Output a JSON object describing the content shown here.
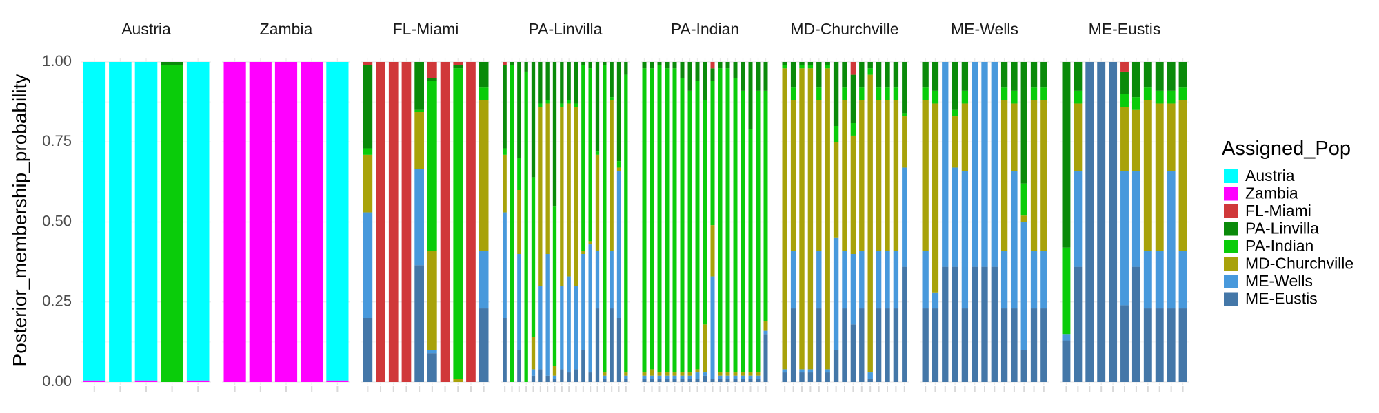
{
  "chart_data": {
    "type": "bar",
    "stacked": true,
    "faceted": true,
    "ylabel": "Posterior_membership_probability",
    "ylim": [
      0,
      1
    ],
    "yticks": [
      "0.00",
      "0.25",
      "0.50",
      "0.75",
      "1.00"
    ],
    "legend": {
      "title": "Assigned_Pop",
      "placement": "right",
      "entries": [
        "Austria",
        "Zambia",
        "FL-Miami",
        "PA-Linvilla",
        "PA-Indian",
        "MD-Churchville",
        "ME-Wells",
        "ME-Eustis"
      ]
    },
    "stack_order_bottom_to_top": [
      "ME-Eustis",
      "ME-Wells",
      "MD-Churchville",
      "PA-Indian",
      "PA-Linvilla",
      "FL-Miami",
      "Zambia",
      "Austria"
    ],
    "colors": {
      "Austria": "#00FFFF",
      "Zambia": "#FF00FF",
      "FL-Miami": "#D0383A",
      "PA-Linvilla": "#0A8A0A",
      "PA-Indian": "#0ACC0A",
      "MD-Churchville": "#A8A20A",
      "ME-Wells": "#4899DC",
      "ME-Eustis": "#4477A8"
    },
    "facets": [
      {
        "title": "Austria",
        "bars": [
          {
            "Zambia": 0.005,
            "Austria": 0.995
          },
          {
            "Austria": 1.0
          },
          {
            "Zambia": 0.005,
            "Austria": 0.995
          },
          {
            "PA-Indian": 0.99,
            "PA-Linvilla": 0.01
          },
          {
            "Zambia": 0.005,
            "Austria": 0.995
          }
        ]
      },
      {
        "title": "Zambia",
        "bars": [
          {
            "Zambia": 1.0
          },
          {
            "Zambia": 1.0
          },
          {
            "Zambia": 1.0
          },
          {
            "Zambia": 1.0
          },
          {
            "Zambia": 0.005,
            "Austria": 0.995
          }
        ]
      },
      {
        "title": "FL-Miami",
        "bars": [
          {
            "ME-Eustis": 0.2,
            "ME-Wells": 0.33,
            "MD-Churchville": 0.18,
            "PA-Indian": 0.02,
            "PA-Linvilla": 0.26,
            "FL-Miami": 0.01
          },
          {
            "FL-Miami": 1.0
          },
          {
            "FL-Miami": 1.0
          },
          {
            "FL-Miami": 1.0
          },
          {
            "ME-Eustis": 0.365,
            "ME-Wells": 0.3,
            "MD-Churchville": 0.18,
            "PA-Indian": 0.005,
            "PA-Linvilla": 0.15
          },
          {
            "ME-Eustis": 0.09,
            "ME-Wells": 0.01,
            "MD-Churchville": 0.31,
            "PA-Indian": 0.53,
            "PA-Linvilla": 0.01,
            "FL-Miami": 0.05
          },
          {
            "FL-Miami": 1.0
          },
          {
            "MD-Churchville": 0.01,
            "PA-Indian": 0.97,
            "PA-Linvilla": 0.01,
            "FL-Miami": 0.01
          },
          {
            "FL-Miami": 1.0
          },
          {
            "ME-Eustis": 0.23,
            "ME-Wells": 0.18,
            "MD-Churchville": 0.47,
            "PA-Indian": 0.04,
            "PA-Linvilla": 0.08
          }
        ]
      },
      {
        "title": "PA-Linvilla",
        "bars": [
          {
            "ME-Eustis": 0.2,
            "ME-Wells": 0.33,
            "MD-Churchville": 0.18,
            "PA-Indian": 0.02,
            "PA-Linvilla": 0.26,
            "FL-Miami": 0.01
          },
          {
            "PA-Indian": 0.99,
            "PA-Linvilla": 0.01
          },
          {
            "ME-Eustis": 0.1,
            "ME-Wells": 0.3,
            "MD-Churchville": 0.2,
            "PA-Indian": 0.1,
            "PA-Linvilla": 0.3
          },
          {
            "PA-Indian": 0.97,
            "PA-Linvilla": 0.03
          },
          {
            "ME-Eustis": 0.02,
            "ME-Wells": 0.02,
            "MD-Churchville": 0.1,
            "PA-Indian": 0.5,
            "PA-Linvilla": 0.36
          },
          {
            "ME-Eustis": 0.04,
            "ME-Wells": 0.26,
            "MD-Churchville": 0.56,
            "PA-Indian": 0.01,
            "PA-Linvilla": 0.13
          },
          {
            "ME-Eustis": 0.02,
            "ME-Wells": 0.38,
            "MD-Churchville": 0.47,
            "PA-Indian": 0.01,
            "PA-Linvilla": 0.12
          },
          {
            "ME-Eustis": 0.01,
            "ME-Wells": 0.01,
            "MD-Churchville": 0.03,
            "PA-Indian": 0.5,
            "PA-Linvilla": 0.45
          },
          {
            "ME-Eustis": 0.04,
            "ME-Wells": 0.26,
            "MD-Churchville": 0.56,
            "PA-Indian": 0.01,
            "PA-Linvilla": 0.13
          },
          {
            "ME-Eustis": 0.03,
            "ME-Wells": 0.3,
            "MD-Churchville": 0.54,
            "PA-Indian": 0.01,
            "PA-Linvilla": 0.12
          },
          {
            "ME-Eustis": 0.04,
            "ME-Wells": 0.26,
            "MD-Churchville": 0.56,
            "PA-Indian": 0.01,
            "PA-Linvilla": 0.13
          },
          {
            "ME-Eustis": 0.1,
            "ME-Wells": 0.3,
            "MD-Churchville": 0.01,
            "PA-Indian": 0.58,
            "PA-Linvilla": 0.01
          },
          {
            "ME-Eustis": 0.03,
            "ME-Wells": 0.4,
            "MD-Churchville": 0.01,
            "PA-Indian": 0.54,
            "PA-Linvilla": 0.02
          },
          {
            "ME-Eustis": 0.23,
            "ME-Wells": 0.18,
            "MD-Churchville": 0.3,
            "PA-Indian": 0.01,
            "PA-Linvilla": 0.28
          },
          {
            "ME-Eustis": 0.01,
            "ME-Wells": 0.01,
            "MD-Churchville": 0.01,
            "PA-Indian": 0.96,
            "PA-Linvilla": 0.01
          },
          {
            "ME-Eustis": 0.23,
            "ME-Wells": 0.18,
            "MD-Churchville": 0.47,
            "PA-Indian": 0.01,
            "PA-Linvilla": 0.11
          },
          {
            "ME-Eustis": 0.2,
            "ME-Wells": 0.46,
            "MD-Churchville": 0.01,
            "PA-Indian": 0.02,
            "PA-Linvilla": 0.31
          },
          {
            "ME-Eustis": 0.01,
            "ME-Wells": 0.01,
            "MD-Churchville": 0.01,
            "PA-Indian": 0.93,
            "PA-Linvilla": 0.04
          }
        ]
      },
      {
        "title": "PA-Indian",
        "bars": [
          {
            "ME-Eustis": 0.01,
            "ME-Wells": 0.01,
            "MD-Churchville": 0.01,
            "PA-Indian": 0.95,
            "PA-Linvilla": 0.02
          },
          {
            "ME-Eustis": 0.01,
            "ME-Wells": 0.01,
            "MD-Churchville": 0.02,
            "PA-Indian": 0.94,
            "PA-Linvilla": 0.02
          },
          {
            "ME-Eustis": 0.01,
            "ME-Wells": 0.01,
            "MD-Churchville": 0.01,
            "PA-Indian": 0.96,
            "PA-Linvilla": 0.01
          },
          {
            "ME-Eustis": 0.01,
            "ME-Wells": 0.01,
            "MD-Churchville": 0.01,
            "PA-Indian": 0.95,
            "PA-Linvilla": 0.02
          },
          {
            "ME-Eustis": 0.01,
            "ME-Wells": 0.01,
            "MD-Churchville": 0.01,
            "PA-Indian": 0.95,
            "PA-Linvilla": 0.02
          },
          {
            "ME-Eustis": 0.01,
            "ME-Wells": 0.01,
            "MD-Churchville": 0.01,
            "PA-Indian": 0.92,
            "PA-Linvilla": 0.05
          },
          {
            "ME-Eustis": 0.01,
            "ME-Wells": 0.01,
            "MD-Churchville": 0.01,
            "PA-Indian": 0.88,
            "PA-Linvilla": 0.09
          },
          {
            "ME-Eustis": 0.01,
            "ME-Wells": 0.02,
            "MD-Churchville": 0.01,
            "PA-Indian": 0.9,
            "PA-Linvilla": 0.06
          },
          {
            "ME-Eustis": 0.02,
            "ME-Wells": 0.01,
            "MD-Churchville": 0.15,
            "PA-Indian": 0.7,
            "PA-Linvilla": 0.12
          },
          {
            "ME-Eustis": 0.01,
            "ME-Wells": 0.32,
            "MD-Churchville": 0.16,
            "PA-Indian": 0.45,
            "PA-Linvilla": 0.04,
            "FL-Miami": 0.02
          },
          {
            "ME-Eustis": 0.01,
            "ME-Wells": 0.01,
            "MD-Churchville": 0.01,
            "PA-Indian": 0.95,
            "PA-Linvilla": 0.02
          },
          {
            "ME-Eustis": 0.01,
            "ME-Wells": 0.01,
            "MD-Churchville": 0.01,
            "PA-Indian": 0.95,
            "PA-Linvilla": 0.02
          },
          {
            "ME-Eustis": 0.01,
            "ME-Wells": 0.01,
            "MD-Churchville": 0.01,
            "PA-Indian": 0.92,
            "PA-Linvilla": 0.05
          },
          {
            "ME-Eustis": 0.01,
            "ME-Wells": 0.01,
            "MD-Churchville": 0.01,
            "PA-Indian": 0.88,
            "PA-Linvilla": 0.09
          },
          {
            "ME-Eustis": 0.01,
            "ME-Wells": 0.01,
            "MD-Churchville": 0.01,
            "PA-Indian": 0.76,
            "PA-Linvilla": 0.21
          },
          {
            "ME-Eustis": 0.01,
            "ME-Wells": 0.01,
            "MD-Churchville": 0.01,
            "PA-Indian": 0.88,
            "PA-Linvilla": 0.09
          },
          {
            "ME-Eustis": 0.15,
            "ME-Wells": 0.01,
            "MD-Churchville": 0.03,
            "PA-Indian": 0.72,
            "PA-Linvilla": 0.09
          }
        ]
      },
      {
        "title": "MD-Churchville",
        "bars": [
          {
            "ME-Eustis": 0.03,
            "ME-Wells": 0.01,
            "MD-Churchville": 0.94,
            "PA-Indian": 0.01,
            "PA-Linvilla": 0.01
          },
          {
            "ME-Eustis": 0.23,
            "ME-Wells": 0.18,
            "MD-Churchville": 0.47,
            "PA-Indian": 0.04,
            "PA-Linvilla": 0.08
          },
          {
            "ME-Eustis": 0.03,
            "ME-Wells": 0.01,
            "MD-Churchville": 0.94,
            "PA-Indian": 0.01,
            "PA-Linvilla": 0.01
          },
          {
            "ME-Eustis": 0.03,
            "ME-Wells": 0.01,
            "MD-Churchville": 0.94,
            "PA-Indian": 0.01,
            "PA-Linvilla": 0.01
          },
          {
            "ME-Eustis": 0.23,
            "ME-Wells": 0.18,
            "MD-Churchville": 0.47,
            "PA-Indian": 0.04,
            "PA-Linvilla": 0.08
          },
          {
            "ME-Eustis": 0.03,
            "ME-Wells": 0.01,
            "MD-Churchville": 0.94,
            "PA-Indian": 0.01,
            "PA-Linvilla": 0.01
          },
          {
            "ME-Eustis": 0.1,
            "ME-Wells": 0.35,
            "MD-Churchville": 0.3,
            "PA-Indian": 0.05,
            "PA-Linvilla": 0.2
          },
          {
            "ME-Eustis": 0.23,
            "ME-Wells": 0.18,
            "MD-Churchville": 0.47,
            "PA-Indian": 0.04,
            "PA-Linvilla": 0.08
          },
          {
            "ME-Eustis": 0.18,
            "ME-Wells": 0.22,
            "MD-Churchville": 0.37,
            "PA-Indian": 0.04,
            "PA-Linvilla": 0.15,
            "FL-Miami": 0.04
          },
          {
            "ME-Eustis": 0.23,
            "ME-Wells": 0.18,
            "MD-Churchville": 0.47,
            "PA-Indian": 0.04,
            "PA-Linvilla": 0.08
          },
          {
            "ME-Eustis": 0.01,
            "ME-Wells": 0.02,
            "MD-Churchville": 0.93,
            "PA-Indian": 0.02,
            "PA-Linvilla": 0.02
          },
          {
            "ME-Eustis": 0.23,
            "ME-Wells": 0.18,
            "MD-Churchville": 0.47,
            "PA-Indian": 0.04,
            "PA-Linvilla": 0.08
          },
          {
            "ME-Eustis": 0.23,
            "ME-Wells": 0.18,
            "MD-Churchville": 0.47,
            "PA-Indian": 0.04,
            "PA-Linvilla": 0.08
          },
          {
            "ME-Eustis": 0.23,
            "ME-Wells": 0.18,
            "MD-Churchville": 0.47,
            "PA-Indian": 0.04,
            "PA-Linvilla": 0.08
          },
          {
            "ME-Eustis": 0.36,
            "ME-Wells": 0.31,
            "MD-Churchville": 0.16,
            "PA-Indian": 0.01,
            "PA-Linvilla": 0.16
          }
        ]
      },
      {
        "title": "ME-Wells",
        "bars": [
          {
            "ME-Eustis": 0.23,
            "ME-Wells": 0.18,
            "MD-Churchville": 0.47,
            "PA-Indian": 0.04,
            "PA-Linvilla": 0.08
          },
          {
            "ME-Eustis": 0.23,
            "ME-Wells": 0.05,
            "MD-Churchville": 0.59,
            "PA-Indian": 0.04,
            "PA-Linvilla": 0.09
          },
          {
            "ME-Eustis": 0.36,
            "ME-Wells": 0.64
          },
          {
            "ME-Eustis": 0.36,
            "ME-Wells": 0.31,
            "MD-Churchville": 0.16,
            "PA-Indian": 0.02,
            "PA-Linvilla": 0.15
          },
          {
            "ME-Eustis": 0.23,
            "ME-Wells": 0.43,
            "MD-Churchville": 0.21,
            "PA-Indian": 0.04,
            "PA-Linvilla": 0.09
          },
          {
            "ME-Eustis": 0.36,
            "ME-Wells": 0.64
          },
          {
            "ME-Eustis": 0.36,
            "ME-Wells": 0.64
          },
          {
            "ME-Eustis": 0.36,
            "ME-Wells": 0.64
          },
          {
            "ME-Eustis": 0.23,
            "ME-Wells": 0.18,
            "MD-Churchville": 0.47,
            "PA-Indian": 0.04,
            "PA-Linvilla": 0.08
          },
          {
            "ME-Eustis": 0.23,
            "ME-Wells": 0.43,
            "MD-Churchville": 0.21,
            "PA-Indian": 0.04,
            "PA-Linvilla": 0.09
          },
          {
            "ME-Eustis": 0.1,
            "ME-Wells": 0.4,
            "MD-Churchville": 0.02,
            "PA-Indian": 0.1,
            "PA-Linvilla": 0.38
          },
          {
            "ME-Eustis": 0.23,
            "ME-Wells": 0.18,
            "MD-Churchville": 0.47,
            "PA-Indian": 0.04,
            "PA-Linvilla": 0.08
          },
          {
            "ME-Eustis": 0.23,
            "ME-Wells": 0.18,
            "MD-Churchville": 0.47,
            "PA-Indian": 0.04,
            "PA-Linvilla": 0.08
          }
        ]
      },
      {
        "title": "ME-Eustis",
        "bars": [
          {
            "ME-Eustis": 0.13,
            "ME-Wells": 0.02,
            "PA-Indian": 0.27,
            "PA-Linvilla": 0.58
          },
          {
            "ME-Eustis": 0.36,
            "ME-Wells": 0.3,
            "MD-Churchville": 0.21,
            "PA-Indian": 0.04,
            "PA-Linvilla": 0.09
          },
          {
            "ME-Eustis": 1.0
          },
          {
            "ME-Eustis": 1.0
          },
          {
            "ME-Eustis": 1.0
          },
          {
            "ME-Eustis": 0.24,
            "ME-Wells": 0.42,
            "MD-Churchville": 0.2,
            "PA-Indian": 0.04,
            "PA-Linvilla": 0.07,
            "FL-Miami": 0.03
          },
          {
            "ME-Eustis": 0.36,
            "ME-Wells": 0.3,
            "MD-Churchville": 0.19,
            "PA-Indian": 0.04,
            "PA-Linvilla": 0.11
          },
          {
            "ME-Eustis": 0.23,
            "ME-Wells": 0.18,
            "MD-Churchville": 0.47,
            "PA-Indian": 0.04,
            "PA-Linvilla": 0.08
          },
          {
            "ME-Eustis": 0.23,
            "ME-Wells": 0.18,
            "MD-Churchville": 0.46,
            "PA-Indian": 0.04,
            "PA-Linvilla": 0.09
          },
          {
            "ME-Eustis": 0.23,
            "ME-Wells": 0.43,
            "MD-Churchville": 0.21,
            "PA-Indian": 0.04,
            "PA-Linvilla": 0.09
          },
          {
            "ME-Eustis": 0.23,
            "ME-Wells": 0.18,
            "MD-Churchville": 0.47,
            "PA-Indian": 0.04,
            "PA-Linvilla": 0.08
          }
        ]
      }
    ]
  }
}
